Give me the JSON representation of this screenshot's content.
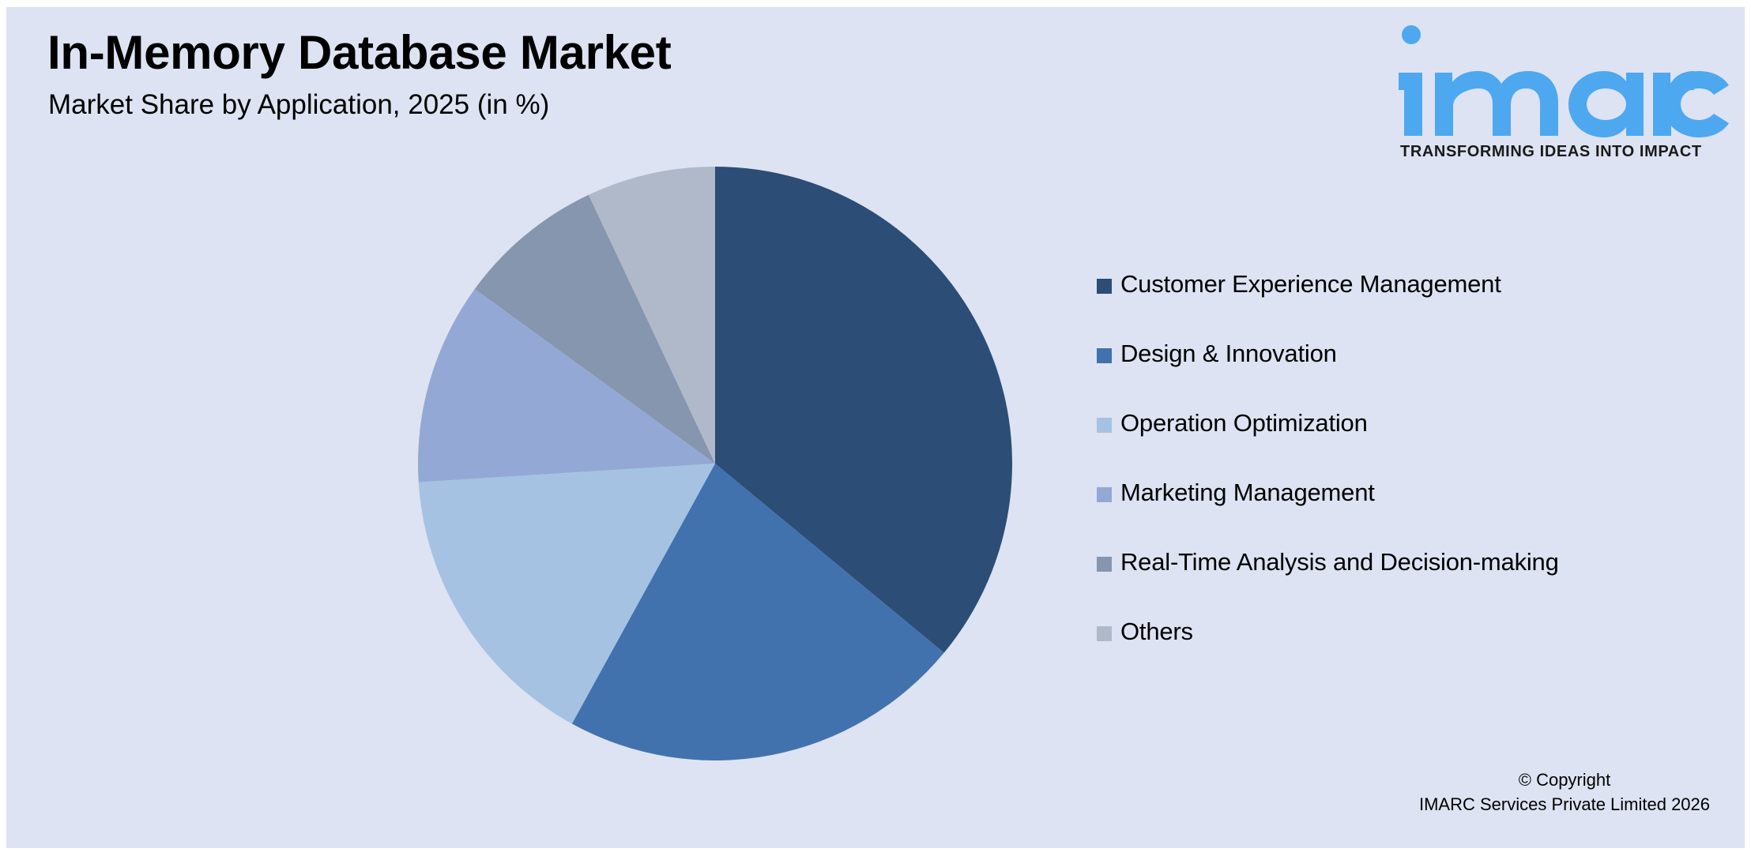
{
  "header": {
    "title": "In-Memory Database Market",
    "subtitle": "Market Share by Application, 2025 (in %)"
  },
  "logo": {
    "wordmark": "imarc",
    "tagline": "TRANSFORMING IDEAS INTO IMPACT",
    "color": "#4DA8F0"
  },
  "colors": {
    "background": "#DDE3F2",
    "border": "#FFFFFF"
  },
  "chart_data": {
    "type": "pie",
    "title": "In-Memory Database Market",
    "subtitle": "Market Share by Application, 2025 (in %)",
    "categories": [
      "Customer Experience Management",
      "Design & Innovation",
      "Operation Optimization",
      "Marketing Management",
      "Real-Time Analysis and Decision-making",
      "Others"
    ],
    "values": [
      36,
      22,
      16,
      11,
      8,
      7
    ],
    "colors": [
      "#2C4D75",
      "#4172AE",
      "#A6C2E2",
      "#94A8D6",
      "#8696AE",
      "#AFB9C9"
    ],
    "start_angle_deg": 0,
    "direction": "clockwise",
    "data_labels": false,
    "legend_position": "right",
    "center": [
      905,
      587
    ],
    "radius": 376
  },
  "legend": {
    "items": [
      {
        "label": "Customer Experience Management",
        "color": "#2C4D75"
      },
      {
        "label": "Design & Innovation",
        "color": "#4172AE"
      },
      {
        "label": "Operation Optimization",
        "color": "#A6C2E2"
      },
      {
        "label": "Marketing Management",
        "color": "#94A8D6"
      },
      {
        "label": "Real-Time Analysis and Decision-making",
        "color": "#8696AE"
      },
      {
        "label": "Others",
        "color": "#AFB9C9"
      }
    ]
  },
  "footer": {
    "copyright_line1": "© Copyright",
    "copyright_line2": "IMARC Services Private Limited 2026"
  }
}
